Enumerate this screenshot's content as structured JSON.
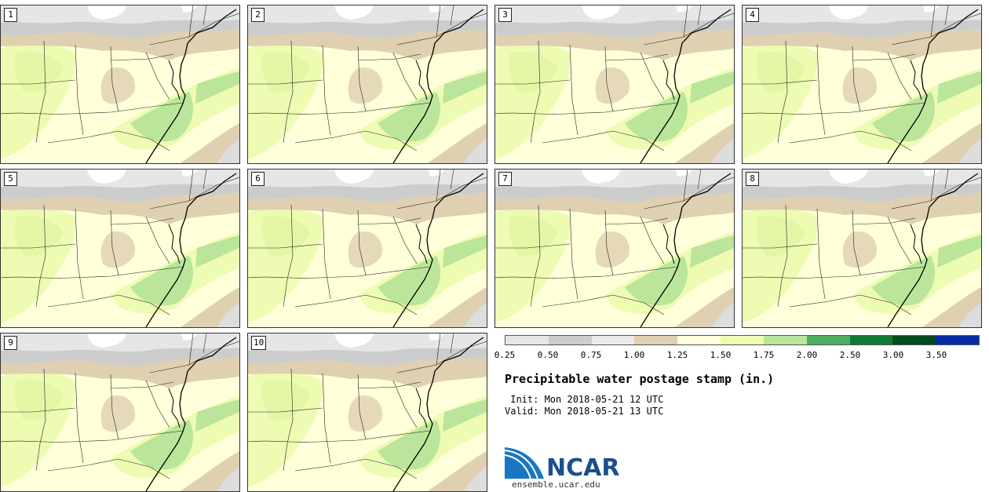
{
  "members": [
    "1",
    "2",
    "3",
    "4",
    "5",
    "6",
    "7",
    "8",
    "9",
    "10"
  ],
  "colorbar": {
    "colors": [
      "#e6e6e6",
      "#cccccc",
      "#eaeaea",
      "#ded0b0",
      "#ffffd9",
      "#edfbb3",
      "#bae59b",
      "#50ae60",
      "#117a35",
      "#034b1e",
      "#052ba6"
    ],
    "ticks": [
      "0.25",
      "0.50",
      "0.75",
      "1.00",
      "1.25",
      "1.50",
      "1.75",
      "2.00",
      "2.50",
      "3.00",
      "3.50"
    ]
  },
  "title": "Precipitable water postage stamp (in.)",
  "init": " Init: Mon 2018-05-21 12 UTC",
  "valid": "Valid: Mon 2018-05-21 13 UTC",
  "logo": {
    "text": "NCAR",
    "website": "ensemble.ucar.edu"
  }
}
